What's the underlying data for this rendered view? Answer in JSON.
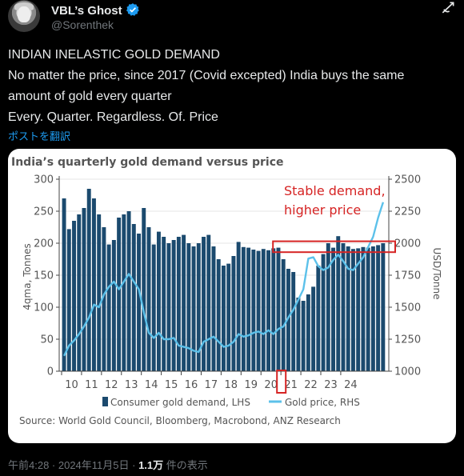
{
  "tweet": {
    "author_name": "VBL’s Ghost",
    "handle": "@Sorenthek",
    "lines": [
      "INDIAN INELASTIC GOLD DEMAND",
      "No matter the price, since 2017 (Covid excepted) India buys the same",
      "amount of gold every quarter",
      "Every. Quarter. Regardless. Of. Price"
    ],
    "translate_label": "ポストを翻訳",
    "timestamp": "午前4:28 · 2024年11月5日",
    "view_count": "1.1万",
    "view_suffix": "件の表示"
  },
  "icons": {
    "verified": "verified-badge-icon",
    "grok": "grok-icon",
    "avatar": "avatar"
  },
  "colors": {
    "bar": "#1b4a6e",
    "line": "#5cc1ea",
    "highlight": "#d62424",
    "link": "#1d9bf0"
  },
  "chart_data": {
    "type": "bar",
    "title": "India’s quarterly gold demand versus price",
    "ylabel": "4qma, Tonnes",
    "y2label": "USD/Tonne",
    "ylim": [
      0,
      300
    ],
    "y2lim": [
      1000,
      2500
    ],
    "yticks": [
      0,
      50,
      100,
      150,
      200,
      250,
      300
    ],
    "y2ticks": [
      1000,
      1250,
      1500,
      1750,
      2000,
      2250,
      2500
    ],
    "x_labels": [
      "10",
      "11",
      "12",
      "13",
      "14",
      "15",
      "16",
      "17",
      "18",
      "19",
      "20",
      "21",
      "22",
      "23",
      "24"
    ],
    "annotation_lines": [
      "Stable demand,",
      "higher price"
    ],
    "source": "Source: World Gold Council, Bloomberg, Macrobond, ANZ Research",
    "series": [
      {
        "name": "Consumer gold demand, LHS",
        "kind": "bar",
        "values": [
          270,
          222,
          235,
          245,
          255,
          285,
          270,
          245,
          225,
          198,
          205,
          240,
          245,
          250,
          230,
          215,
          255,
          225,
          198,
          218,
          210,
          200,
          205,
          210,
          213,
          200,
          195,
          200,
          210,
          213,
          195,
          175,
          165,
          168,
          180,
          202,
          194,
          193,
          190,
          188,
          191,
          189,
          192,
          193,
          175,
          160,
          155,
          115,
          110,
          120,
          132,
          165,
          183,
          200,
          193,
          211,
          200,
          195,
          191,
          192,
          194,
          193,
          195,
          197,
          200
        ]
      },
      {
        "name": "Gold price, RHS",
        "kind": "line",
        "values": [
          1120,
          1200,
          1240,
          1290,
          1350,
          1420,
          1520,
          1500,
          1600,
          1660,
          1700,
          1640,
          1700,
          1760,
          1700,
          1640,
          1460,
          1300,
          1260,
          1300,
          1250,
          1250,
          1260,
          1200,
          1190,
          1180,
          1160,
          1150,
          1230,
          1250,
          1270,
          1230,
          1190,
          1200,
          1230,
          1290,
          1270,
          1280,
          1300,
          1310,
          1290,
          1320,
          1290,
          1330,
          1350,
          1420,
          1480,
          1560,
          1640,
          1880,
          1890,
          1820,
          1790,
          1810,
          1870,
          1910,
          1860,
          1800,
          1790,
          1840,
          1890,
          1970,
          2050,
          2200,
          2320
        ]
      }
    ]
  }
}
